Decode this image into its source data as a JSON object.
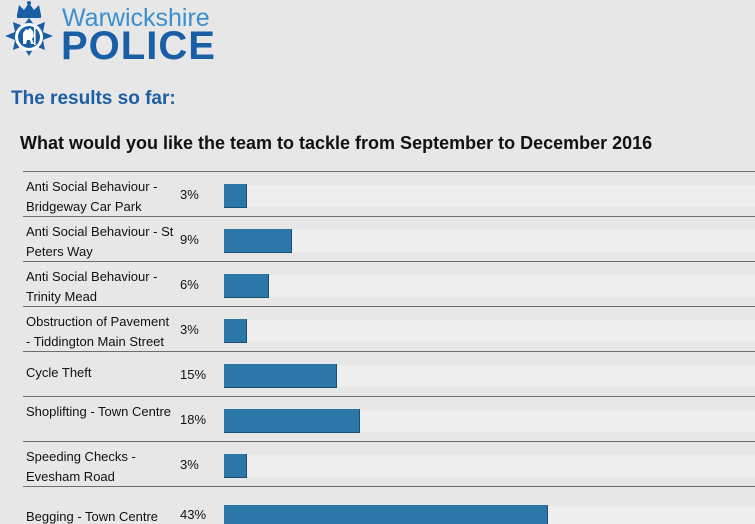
{
  "brand": {
    "top_text": "Warwickshire",
    "bottom_text": "POLICE",
    "crest_icon": "police-crest-icon",
    "colors": {
      "light_blue": "#3b8fd0",
      "dark_blue": "#1a5ea6"
    }
  },
  "results_heading": "The results so far:",
  "question": "What would you like the team to tackle from September to December 2016",
  "bar_color": "#2a77a8",
  "options": [
    {
      "label": "Anti Social Behaviour - Bridgeway Car Park",
      "percent_text": "3%",
      "percent": 3
    },
    {
      "label": "Anti Social Behaviour - St Peters Way",
      "percent_text": "9%",
      "percent": 9
    },
    {
      "label": "Anti Social Behaviour - Trinity Mead",
      "percent_text": "6%",
      "percent": 6
    },
    {
      "label": "Obstruction of Pavement - Tiddington Main Street",
      "percent_text": "3%",
      "percent": 3
    },
    {
      "label": "Cycle Theft",
      "percent_text": "15%",
      "percent": 15
    },
    {
      "label": "Shoplifting - Town Centre",
      "percent_text": "18%",
      "percent": 18
    },
    {
      "label": "Speeding Checks - Evesham Road",
      "percent_text": "3%",
      "percent": 3
    },
    {
      "label": "Begging - Town Centre",
      "percent_text": "43%",
      "percent": 43
    }
  ]
}
